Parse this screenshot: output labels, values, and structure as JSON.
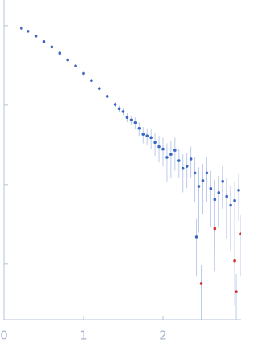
{
  "chart_data": {
    "type": "scatter",
    "log_y": true,
    "xlim": [
      0,
      2.98
    ],
    "xticks": [
      0,
      1,
      2
    ],
    "ylim": [
      0.0002,
      2.1
    ],
    "yticks": [
      1,
      0.1,
      0.01,
      0.001
    ],
    "series": [
      {
        "color": "#3a66c4",
        "x": [
          0.22,
          0.3,
          0.4,
          0.5,
          0.6,
          0.7,
          0.8,
          0.9,
          1.0,
          1.1,
          1.2,
          1.3,
          1.4,
          1.45,
          1.5,
          1.55,
          1.6,
          1.65,
          1.7,
          1.75,
          1.8,
          1.85,
          1.9,
          1.95,
          2.0,
          2.05,
          2.1,
          2.15,
          2.2,
          2.25,
          2.3,
          2.35,
          2.4,
          2.42,
          2.45,
          2.5,
          2.55,
          2.6,
          2.65,
          2.7,
          2.75,
          2.8,
          2.85,
          2.9,
          2.95
        ],
        "values": [
          0.93,
          0.85,
          0.74,
          0.63,
          0.54,
          0.45,
          0.37,
          0.31,
          0.25,
          0.204,
          0.162,
          0.129,
          0.102,
          0.09,
          0.083,
          0.07,
          0.065,
          0.06,
          0.051,
          0.043,
          0.041,
          0.039,
          0.034,
          0.03,
          0.028,
          0.022,
          0.024,
          0.027,
          0.02,
          0.016,
          0.017,
          0.021,
          0.014,
          0.0022,
          0.0095,
          0.0112,
          0.014,
          0.0089,
          0.0065,
          0.0079,
          0.011,
          0.0071,
          0.0055,
          0.0063,
          0.0085
        ],
        "errors": [
          0.005,
          0.005,
          0.005,
          0.005,
          0.005,
          0.005,
          0.005,
          0.005,
          0.005,
          0.005,
          0.006,
          0.006,
          0.007,
          0.008,
          0.008,
          0.009,
          0.009,
          0.01,
          0.01,
          0.01,
          0.01,
          0.011,
          0.011,
          0.011,
          0.011,
          0.011,
          0.012,
          0.012,
          0.008,
          0.008,
          0.008,
          0.009,
          0.008,
          0.0015,
          0.007,
          0.007,
          0.008,
          0.006,
          0.005,
          0.005,
          0.006,
          0.005,
          0.004,
          0.0045,
          0.005
        ]
      },
      {
        "color": "#d0342c",
        "x": [
          2.48,
          2.65,
          2.9,
          2.92,
          2.98
        ],
        "values": [
          0.00057,
          0.0028,
          0.0011,
          0.00045,
          0.0024
        ],
        "errors": [
          0.0004,
          0.002,
          0.0008,
          0.0003,
          0.0017
        ]
      }
    ]
  }
}
